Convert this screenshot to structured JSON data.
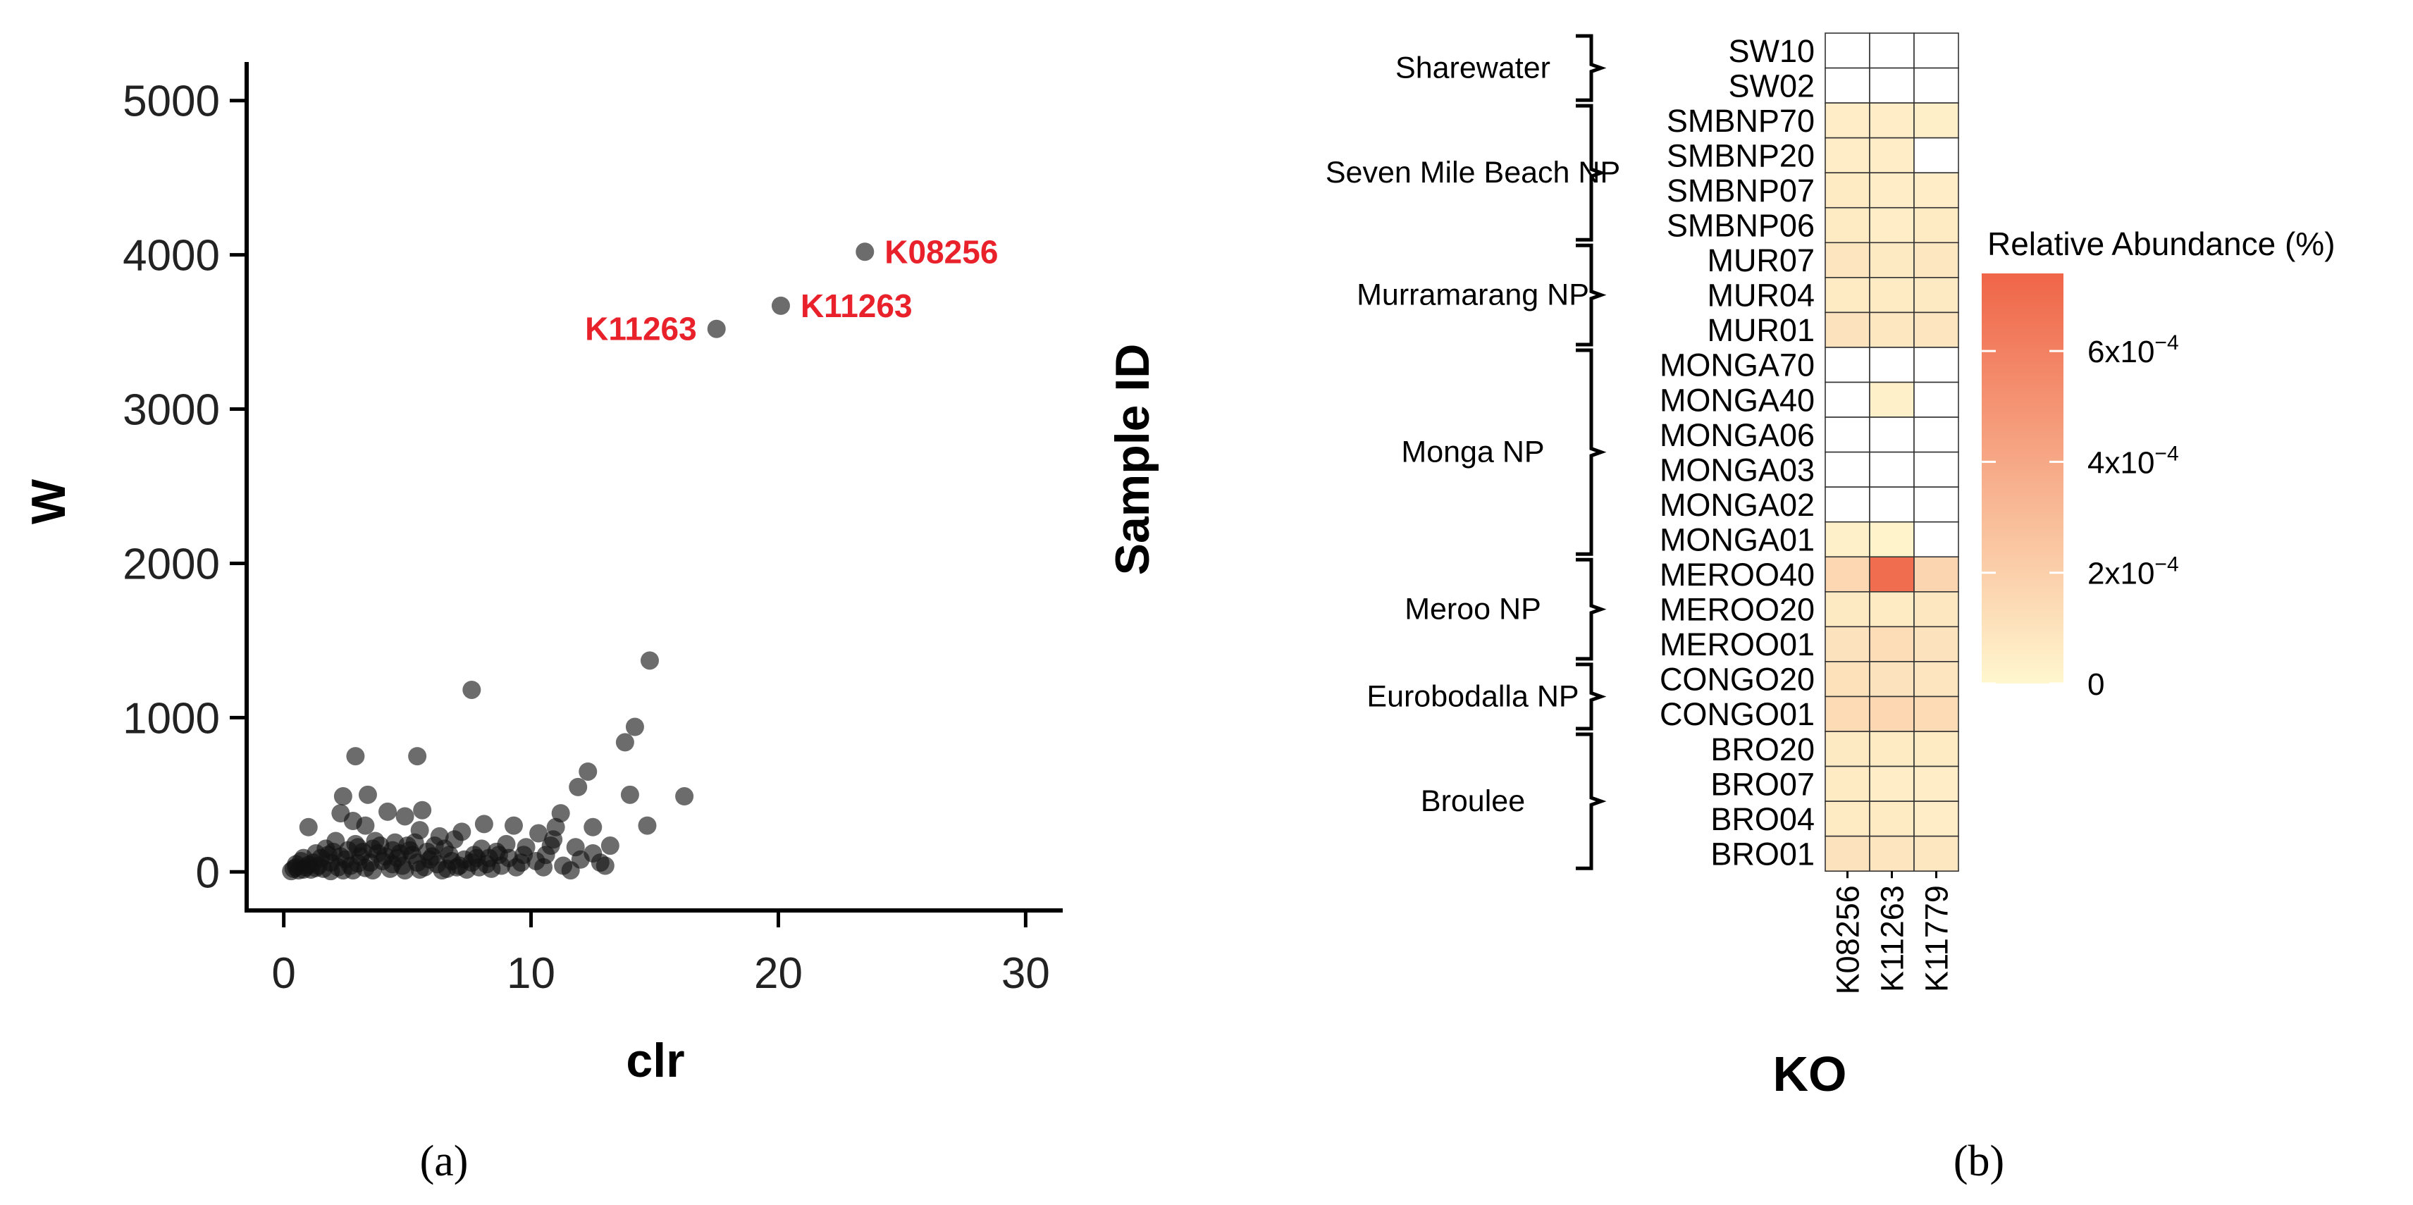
{
  "panel_a": {
    "label": "(a)",
    "chart_data": {
      "type": "scatter",
      "xlabel": "clr",
      "ylabel": "W",
      "xlim": [
        -1.5,
        31.5
      ],
      "ylim": [
        -250,
        5250
      ],
      "xticks": [
        0,
        10,
        20,
        30
      ],
      "yticks": [
        0,
        1000,
        2000,
        3000,
        4000,
        5000
      ],
      "highlighted": [
        {
          "x": 23.5,
          "y": 4020,
          "label": "K08256",
          "label_side": "right"
        },
        {
          "x": 20.1,
          "y": 3670,
          "label": "K11263",
          "label_side": "right"
        },
        {
          "x": 17.5,
          "y": 3520,
          "label": "K11263",
          "label_side": "left"
        }
      ],
      "points": [
        [
          7.6,
          1180
        ],
        [
          14.8,
          1370
        ],
        [
          5.4,
          750
        ],
        [
          2.9,
          750
        ],
        [
          14.2,
          940
        ],
        [
          13.8,
          840
        ],
        [
          12.3,
          650
        ],
        [
          14.0,
          500
        ],
        [
          16.2,
          490
        ],
        [
          11.9,
          550
        ],
        [
          11.2,
          380
        ],
        [
          12.5,
          290
        ],
        [
          14.7,
          300
        ],
        [
          9.3,
          300
        ],
        [
          8.1,
          310
        ],
        [
          3.4,
          500
        ],
        [
          2.4,
          490
        ],
        [
          4.2,
          390
        ],
        [
          4.9,
          360
        ],
        [
          5.6,
          400
        ],
        [
          2.8,
          330
        ],
        [
          3.3,
          300
        ],
        [
          1.0,
          290
        ],
        [
          2.3,
          380
        ],
        [
          5.5,
          270
        ],
        [
          6.3,
          230
        ],
        [
          7.2,
          260
        ],
        [
          6.9,
          210
        ],
        [
          10.3,
          250
        ],
        [
          10.9,
          210
        ],
        [
          11.8,
          160
        ],
        [
          9.8,
          160
        ],
        [
          10.6,
          110
        ],
        [
          8.6,
          130
        ],
        [
          9.1,
          90
        ],
        [
          10.2,
          70
        ],
        [
          11.3,
          40
        ],
        [
          11.6,
          10
        ],
        [
          13.0,
          40
        ],
        [
          12.5,
          120
        ],
        [
          13.2,
          170
        ],
        [
          7.8,
          90
        ],
        [
          6.5,
          150
        ],
        [
          6.0,
          100
        ],
        [
          5.0,
          170
        ],
        [
          4.4,
          140
        ],
        [
          3.7,
          200
        ],
        [
          3.0,
          160
        ],
        [
          2.1,
          200
        ],
        [
          1.7,
          150
        ],
        [
          1.3,
          120
        ],
        [
          0.8,
          90
        ],
        [
          0.5,
          50
        ],
        [
          0.4,
          20
        ],
        [
          0.3,
          5
        ],
        [
          0.6,
          10
        ],
        [
          0.9,
          30
        ],
        [
          1.1,
          15
        ],
        [
          1.4,
          40
        ],
        [
          1.6,
          20
        ],
        [
          1.9,
          60
        ],
        [
          2.2,
          30
        ],
        [
          2.5,
          80
        ],
        [
          2.7,
          40
        ],
        [
          3.1,
          100
        ],
        [
          3.5,
          60
        ],
        [
          3.8,
          120
        ],
        [
          4.0,
          70
        ],
        [
          4.3,
          20
        ],
        [
          4.6,
          90
        ],
        [
          4.8,
          40
        ],
        [
          5.2,
          110
        ],
        [
          5.4,
          60
        ],
        [
          5.7,
          30
        ],
        [
          5.9,
          80
        ],
        [
          6.2,
          50
        ],
        [
          6.6,
          20
        ],
        [
          6.8,
          70
        ],
        [
          7.1,
          40
        ],
        [
          7.4,
          15
        ],
        [
          7.6,
          60
        ],
        [
          7.9,
          30
        ],
        [
          8.2,
          50
        ],
        [
          8.4,
          20
        ],
        [
          8.8,
          40
        ],
        [
          9.4,
          30
        ],
        [
          9.6,
          60
        ],
        [
          1.2,
          60
        ],
        [
          1.5,
          90
        ],
        [
          1.8,
          110
        ],
        [
          2.0,
          130
        ],
        [
          2.3,
          100
        ],
        [
          2.6,
          140
        ],
        [
          2.9,
          180
        ],
        [
          3.2,
          130
        ],
        [
          3.6,
          150
        ],
        [
          3.9,
          170
        ],
        [
          4.1,
          100
        ],
        [
          4.5,
          190
        ],
        [
          4.7,
          120
        ],
        [
          5.1,
          140
        ],
        [
          5.3,
          190
        ],
        [
          5.8,
          130
        ],
        [
          6.1,
          170
        ],
        [
          0.7,
          70
        ],
        [
          1.0,
          45
        ],
        [
          1.3,
          25
        ],
        [
          2.4,
          10
        ],
        [
          3.3,
          25
        ],
        [
          3.6,
          10
        ],
        [
          4.9,
          10
        ],
        [
          5.5,
          15
        ],
        [
          6.4,
          10
        ],
        [
          7.0,
          30
        ],
        [
          7.3,
          80
        ],
        [
          7.7,
          110
        ],
        [
          8.0,
          150
        ],
        [
          8.3,
          90
        ],
        [
          8.7,
          110
        ],
        [
          9.0,
          180
        ],
        [
          9.7,
          110
        ],
        [
          10.5,
          30
        ],
        [
          10.8,
          170
        ],
        [
          12.0,
          80
        ],
        [
          12.8,
          60
        ],
        [
          11.0,
          290
        ],
        [
          0.5,
          30
        ],
        [
          0.8,
          15
        ],
        [
          1.9,
          5
        ],
        [
          2.8,
          10
        ],
        [
          3.0,
          55
        ],
        [
          4.4,
          50
        ],
        [
          6.7,
          110
        ]
      ]
    }
  },
  "panel_b": {
    "label": "(b)",
    "chart_data": {
      "type": "heatmap",
      "xlabel": "KO",
      "ylabel": "Sample ID",
      "columns": [
        "K08256",
        "K11263",
        "K11779"
      ],
      "rows": [
        "SW10",
        "SW02",
        "SMBNP70",
        "SMBNP20",
        "SMBNP07",
        "SMBNP06",
        "MUR07",
        "MUR04",
        "MUR01",
        "MONGA70",
        "MONGA40",
        "MONGA06",
        "MONGA03",
        "MONGA02",
        "MONGA01",
        "MEROO40",
        "MEROO20",
        "MEROO01",
        "CONGO20",
        "CONGO01",
        "BRO20",
        "BRO07",
        "BRO04",
        "BRO01"
      ],
      "values": [
        [
          null,
          null,
          null
        ],
        [
          null,
          null,
          null
        ],
        [
          0.5,
          0.5,
          0.4
        ],
        [
          0.5,
          0.5,
          null
        ],
        [
          0.6,
          0.5,
          0.5
        ],
        [
          0.6,
          0.5,
          0.6
        ],
        [
          0.9,
          0.7,
          0.8
        ],
        [
          0.6,
          0.6,
          0.7
        ],
        [
          1.0,
          0.8,
          0.9
        ],
        [
          null,
          null,
          null
        ],
        [
          null,
          0.3,
          null
        ],
        [
          null,
          null,
          null
        ],
        [
          null,
          null,
          null
        ],
        [
          null,
          null,
          null
        ],
        [
          0.3,
          0.2,
          null
        ],
        [
          1.6,
          7.0,
          1.7
        ],
        [
          0.7,
          0.6,
          0.8
        ],
        [
          1.0,
          1.3,
          1.0
        ],
        [
          1.1,
          1.0,
          0.9
        ],
        [
          1.4,
          1.6,
          1.4
        ],
        [
          0.7,
          0.6,
          0.6
        ],
        [
          0.6,
          0.5,
          0.5
        ],
        [
          0.6,
          0.6,
          0.5
        ],
        [
          1.0,
          0.9,
          0.8
        ]
      ],
      "value_unit": "x10^-4 %",
      "groups": [
        {
          "name": "Sharewater",
          "from": 0,
          "to": 1
        },
        {
          "name": "Seven Mile Beach NP",
          "from": 2,
          "to": 5
        },
        {
          "name": "Murramarang NP",
          "from": 6,
          "to": 8
        },
        {
          "name": "Monga NP",
          "from": 9,
          "to": 14
        },
        {
          "name": "Meroo NP",
          "from": 15,
          "to": 17
        },
        {
          "name": "Eurobodalla NP",
          "from": 18,
          "to": 19
        },
        {
          "name": "Broulee",
          "from": 20,
          "to": 23
        }
      ],
      "legend": {
        "title": "Relative Abundance (%)",
        "range": [
          0,
          7.4
        ],
        "ticks": [
          {
            "value": 0,
            "label": "0"
          },
          {
            "value": 2,
            "base": "2x10",
            "exp": "−4"
          },
          {
            "value": 4,
            "base": "4x10",
            "exp": "−4"
          },
          {
            "value": 6,
            "base": "6x10",
            "exp": "−4"
          }
        ],
        "color_low": "#fff7cf",
        "color_high": "#ef6548",
        "missing_color": "#ffffff"
      }
    }
  }
}
